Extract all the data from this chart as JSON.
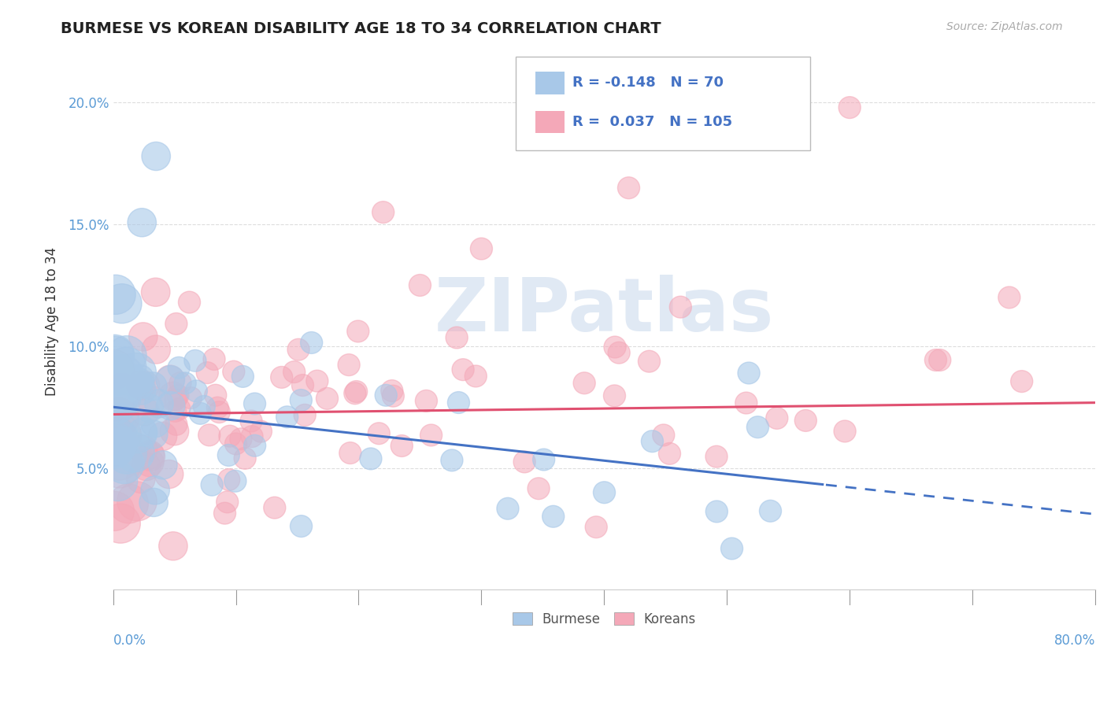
{
  "title": "BURMESE VS KOREAN DISABILITY AGE 18 TO 34 CORRELATION CHART",
  "source": "Source: ZipAtlas.com",
  "ylabel": "Disability Age 18 to 34",
  "xlim": [
    0.0,
    0.8
  ],
  "ylim": [
    0.0,
    0.22
  ],
  "yticks": [
    0.05,
    0.1,
    0.15,
    0.2
  ],
  "ytick_labels": [
    "5.0%",
    "10.0%",
    "15.0%",
    "20.0%"
  ],
  "xtick_positions": [
    0.0,
    0.1,
    0.2,
    0.3,
    0.4,
    0.5,
    0.6,
    0.7,
    0.8
  ],
  "burmese_R": -0.148,
  "burmese_N": 70,
  "korean_R": 0.037,
  "korean_N": 105,
  "burmese_color": "#a8c8e8",
  "korean_color": "#f4a8b8",
  "burmese_line_color": "#4472c4",
  "korean_line_color": "#e05070",
  "legend_burmese": "Burmese",
  "legend_koreans": "Koreans",
  "watermark_text": "ZIPatlas",
  "title_color": "#222222",
  "source_color": "#aaaaaa",
  "axis_label_color": "#333333",
  "tick_label_color": "#5b9bd5",
  "grid_color": "#dddddd",
  "burmese_line_intercept": 0.075,
  "burmese_line_slope": -0.055,
  "burmese_line_solid_end": 0.58,
  "korean_line_intercept": 0.072,
  "korean_line_slope": 0.006,
  "korean_line_solid_end": 0.8
}
